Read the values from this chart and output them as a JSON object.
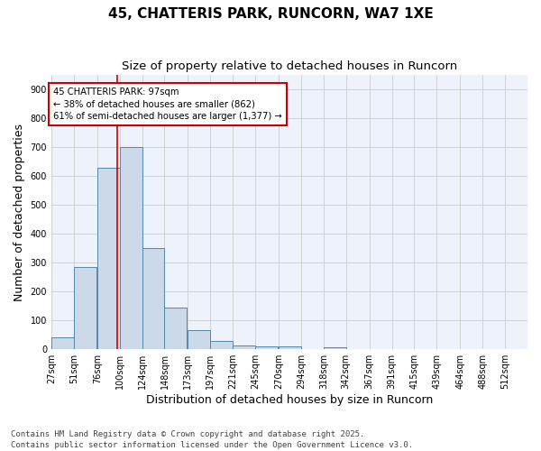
{
  "title": "45, CHATTERIS PARK, RUNCORN, WA7 1XE",
  "subtitle": "Size of property relative to detached houses in Runcorn",
  "xlabel": "Distribution of detached houses by size in Runcorn",
  "ylabel": "Number of detached properties",
  "bar_edges": [
    27,
    51,
    76,
    100,
    124,
    148,
    173,
    197,
    221,
    245,
    270,
    294,
    318,
    342,
    367,
    391,
    415,
    439,
    464,
    488,
    512
  ],
  "bar_values": [
    40,
    285,
    630,
    700,
    350,
    145,
    65,
    28,
    13,
    10,
    10,
    0,
    8,
    0,
    0,
    0,
    0,
    0,
    0,
    0,
    0
  ],
  "bar_color": "#ccd9e8",
  "bar_edge_color": "#5588aa",
  "grid_color": "#cccccc",
  "background_color": "#eef2fa",
  "vline_x": 97,
  "vline_color": "#cc0000",
  "annotation_text": "45 CHATTERIS PARK: 97sqm\n← 38% of detached houses are smaller (862)\n61% of semi-detached houses are larger (1,377) →",
  "annotation_box_color": "#cc0000",
  "ylim": [
    0,
    950
  ],
  "yticks": [
    0,
    100,
    200,
    300,
    400,
    500,
    600,
    700,
    800,
    900
  ],
  "footer": "Contains HM Land Registry data © Crown copyright and database right 2025.\nContains public sector information licensed under the Open Government Licence v3.0.",
  "title_fontsize": 11,
  "subtitle_fontsize": 9.5,
  "tick_fontsize": 7,
  "label_fontsize": 9,
  "footer_fontsize": 6.5
}
